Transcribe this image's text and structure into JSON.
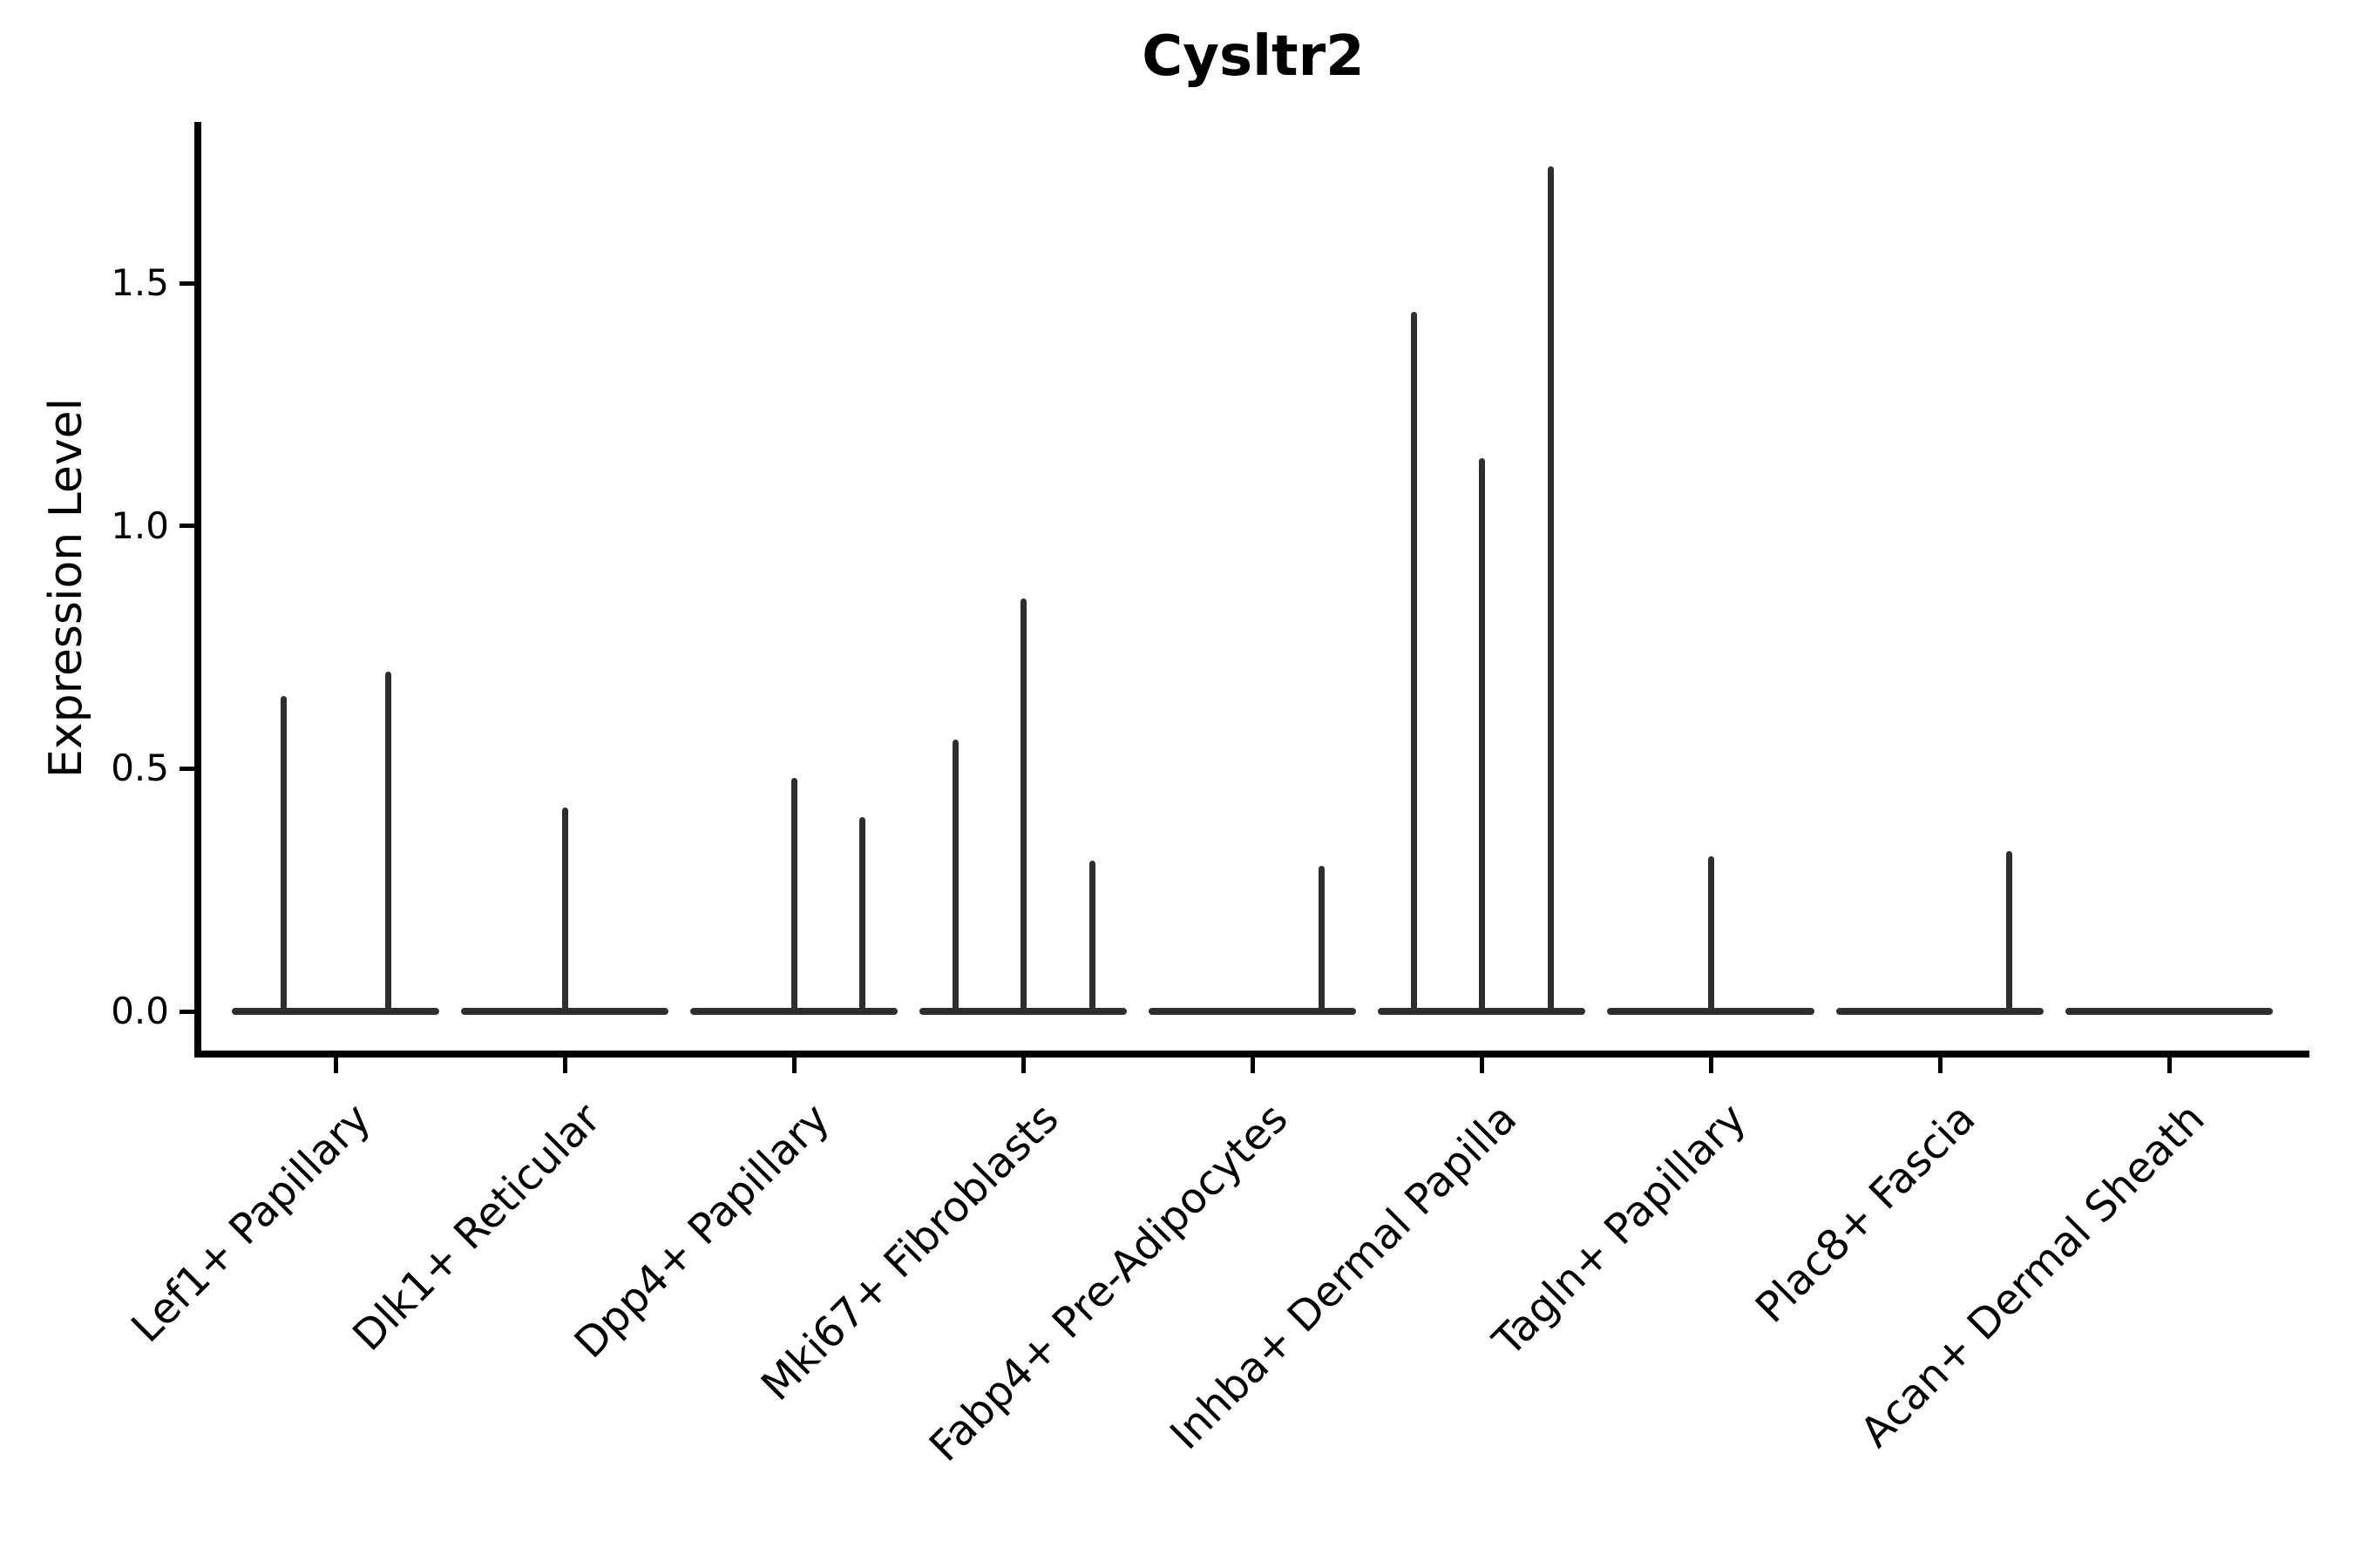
{
  "chart_data": {
    "type": "violin",
    "title": "Cysltr2",
    "ylabel": "Expression Level",
    "xlabel": "",
    "grid": false,
    "legend": "none",
    "yticks": [
      0.0,
      0.5,
      1.0,
      1.5
    ],
    "ytick_labels": [
      "0.0",
      "0.5",
      "1.0",
      "1.5"
    ],
    "ylim": [
      -0.09,
      1.83
    ],
    "baseline_value": 0.0,
    "description": "Violin plot of gene expression; each category shows a flat violin collapsed at 0 with thin density spikes reaching the maximum expression of expressing cells",
    "categories": [
      {
        "label": "Lef1+ Papillary",
        "spikes": [
          {
            "dx": -60,
            "max": 0.65
          },
          {
            "dx": 60,
            "max": 0.7
          }
        ]
      },
      {
        "label": "Dlk1+ Reticular",
        "spikes": [
          {
            "dx": 0,
            "max": 0.42
          }
        ]
      },
      {
        "label": "Dpp4+ Papillary",
        "spikes": [
          {
            "dx": 0,
            "max": 0.48
          },
          {
            "dx": 78,
            "max": 0.4
          }
        ]
      },
      {
        "label": "Mki67+ Fibroblasts",
        "spikes": [
          {
            "dx": -78,
            "max": 0.56
          },
          {
            "dx": 0,
            "max": 0.85
          },
          {
            "dx": 79,
            "max": 0.31
          }
        ]
      },
      {
        "label": "Fabp4+ Pre-Adipocytes",
        "spikes": [
          {
            "dx": 79,
            "max": 0.3
          }
        ]
      },
      {
        "label": "Inhba+ Dermal Papilla",
        "spikes": [
          {
            "dx": -78,
            "max": 1.44
          },
          {
            "dx": 0,
            "max": 1.14
          },
          {
            "dx": 79,
            "max": 1.74
          }
        ]
      },
      {
        "label": "Tagln+ Papillary",
        "spikes": [
          {
            "dx": 0,
            "max": 0.32
          }
        ]
      },
      {
        "label": "Plac8+ Fascia",
        "spikes": [
          {
            "dx": 79,
            "max": 0.33
          }
        ]
      },
      {
        "label": "Acan+ Dermal Sheath",
        "spikes": []
      }
    ],
    "colors": {
      "violin": "#2e2e2e",
      "axis": "#000000",
      "background": "#ffffff"
    }
  }
}
